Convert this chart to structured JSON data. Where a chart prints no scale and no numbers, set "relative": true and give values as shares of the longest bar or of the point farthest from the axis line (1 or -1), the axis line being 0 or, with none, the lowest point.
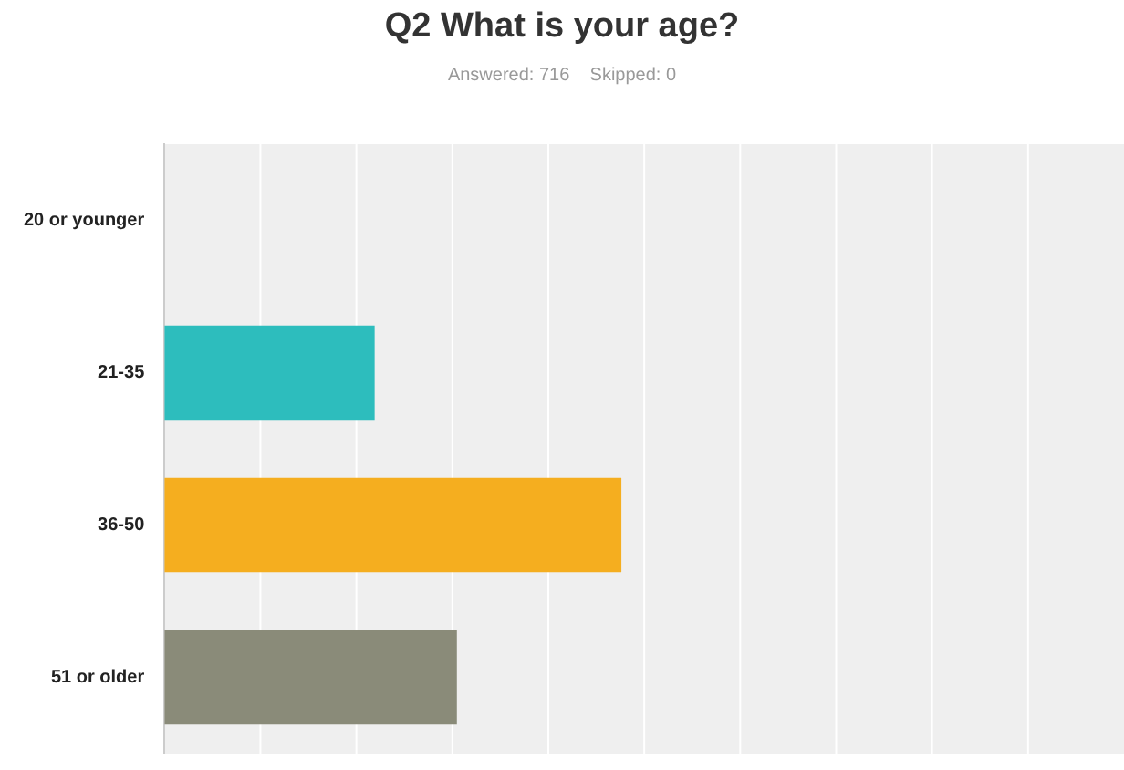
{
  "chart_data": {
    "type": "bar",
    "orientation": "horizontal",
    "relative": true,
    "title": "Q2 What is your age?",
    "subtitle": "Answered: 716    Skipped: 0",
    "categories": [
      "20 or younger",
      "21-35",
      "36-50",
      "51 or older"
    ],
    "values": [
      0,
      0.46,
      1,
      0.64
    ],
    "colors": [
      "#2dbdbd",
      "#2dbdbd",
      "#f5ae1f",
      "#8a8b79"
    ],
    "grid": "x"
  }
}
